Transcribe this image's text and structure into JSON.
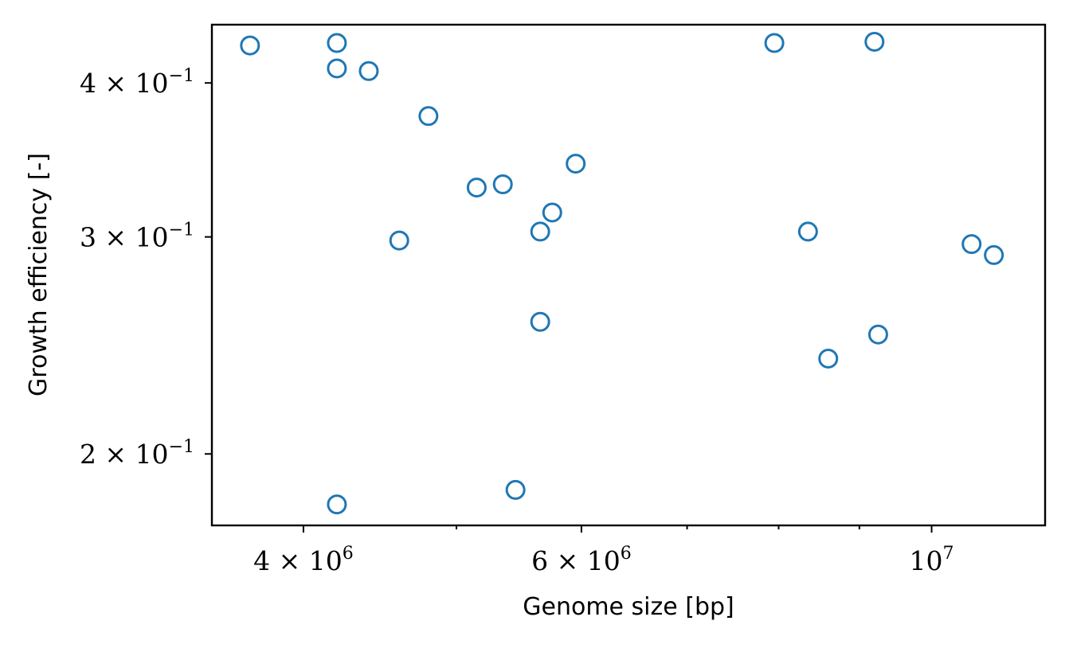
{
  "chart_data": {
    "type": "scatter",
    "xlabel": "Genome size [bp]",
    "ylabel": "Growth efficiency [-]",
    "x_scale": "log",
    "y_scale": "log",
    "xlim": [
      3500000,
      11800000
    ],
    "ylim": [
      0.175,
      0.446
    ],
    "marker": "open-circle",
    "color": "#1f77b4",
    "grid": false,
    "legend": "none",
    "x_ticks": [
      {
        "value": 4000000,
        "mant": "4",
        "exp": "6"
      },
      {
        "value": 6000000,
        "mant": "6",
        "exp": "6"
      },
      {
        "value": 10000000,
        "mant": "",
        "exp": "7"
      }
    ],
    "x_minor_ticks": [
      5000000,
      7000000,
      8000000,
      9000000
    ],
    "y_ticks": [
      {
        "value": 0.4,
        "mant": "4",
        "exp": "−1"
      },
      {
        "value": 0.3,
        "mant": "3",
        "exp": "−1"
      },
      {
        "value": 0.2,
        "mant": "2",
        "exp": "−1"
      }
    ],
    "points": [
      {
        "x": 3700000,
        "y": 0.429
      },
      {
        "x": 4200000,
        "y": 0.431
      },
      {
        "x": 4200000,
        "y": 0.411
      },
      {
        "x": 4400000,
        "y": 0.409
      },
      {
        "x": 4800000,
        "y": 0.376
      },
      {
        "x": 4600000,
        "y": 0.298
      },
      {
        "x": 4200000,
        "y": 0.182
      },
      {
        "x": 5150000,
        "y": 0.329
      },
      {
        "x": 5350000,
        "y": 0.331
      },
      {
        "x": 5450000,
        "y": 0.187
      },
      {
        "x": 5650000,
        "y": 0.256
      },
      {
        "x": 5650000,
        "y": 0.303
      },
      {
        "x": 5750000,
        "y": 0.314
      },
      {
        "x": 5950000,
        "y": 0.344
      },
      {
        "x": 7950000,
        "y": 0.431
      },
      {
        "x": 9200000,
        "y": 0.432
      },
      {
        "x": 8350000,
        "y": 0.303
      },
      {
        "x": 8600000,
        "y": 0.239
      },
      {
        "x": 9250000,
        "y": 0.25
      },
      {
        "x": 10600000,
        "y": 0.296
      },
      {
        "x": 10950000,
        "y": 0.29
      }
    ]
  }
}
